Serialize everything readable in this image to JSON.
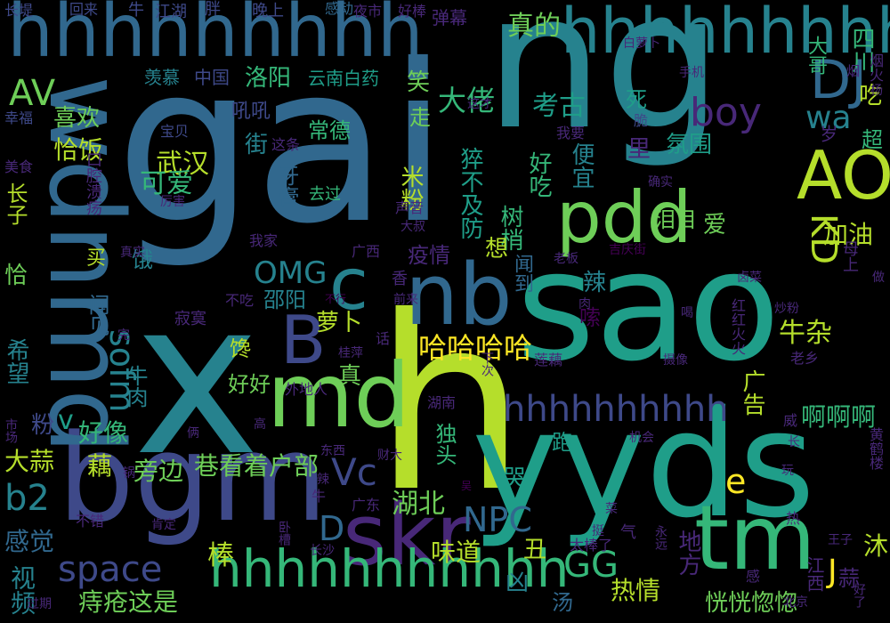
{
  "palette": [
    "#440154",
    "#482878",
    "#3e4989",
    "#31688e",
    "#26828e",
    "#1f9e89",
    "#35b779",
    "#6ece58",
    "#b5de2b",
    "#fde725"
  ],
  "words": [
    {
      "text": "gai",
      "color": "#31688e"
    },
    {
      "text": "ng",
      "color": "#26828e"
    },
    {
      "text": "sao",
      "color": "#1f9e89"
    },
    {
      "text": "x",
      "color": "#26828e"
    },
    {
      "text": "h",
      "color": "#b5de2b"
    },
    {
      "text": "yyds",
      "color": "#1f9e89"
    },
    {
      "text": "bgm",
      "color": "#3e4989"
    },
    {
      "text": "hhhhhhhhh",
      "color": "#31688e"
    },
    {
      "text": "wdnmd",
      "color": "#31688e"
    },
    {
      "text": "md",
      "color": "#6ece58"
    },
    {
      "text": "tm",
      "color": "#35b779"
    },
    {
      "text": "nb",
      "color": "#31688e"
    },
    {
      "text": "pdd",
      "color": "#6ece58"
    },
    {
      "text": "skr",
      "color": "#482878"
    },
    {
      "text": "hhhhhhhhh",
      "color": "#26828e"
    },
    {
      "text": "hhhhhhhhhhh",
      "color": "#35b779"
    },
    {
      "text": "hhhhhhhhhh",
      "color": "#3e4989"
    },
    {
      "text": "c",
      "color": "#26828e"
    },
    {
      "text": "B",
      "color": "#3e4989"
    },
    {
      "text": "AO",
      "color": "#b5de2b"
    },
    {
      "text": "DJ",
      "color": "#31688e"
    },
    {
      "text": "boy",
      "color": "#482878"
    },
    {
      "text": "wa",
      "color": "#26828e"
    },
    {
      "text": "AV",
      "color": "#6ece58"
    },
    {
      "text": "OMG",
      "color": "#26828e"
    },
    {
      "text": "sofm",
      "color": "#26828e"
    },
    {
      "text": "space",
      "color": "#3e4989"
    },
    {
      "text": "NPC",
      "color": "#31688e"
    },
    {
      "text": "GG",
      "color": "#35b779"
    },
    {
      "text": "Vc",
      "color": "#3e4989"
    },
    {
      "text": "D",
      "color": "#31688e"
    },
    {
      "text": "b2",
      "color": "#26828e"
    },
    {
      "text": "e",
      "color": "#fde725"
    },
    {
      "text": "J",
      "color": "#fde725"
    },
    {
      "text": "KD",
      "color": "#b5de2b"
    },
    {
      "text": "v",
      "color": "#1f9e89"
    },
    {
      "text": "哈哈哈哈",
      "color": "#fde725"
    },
    {
      "text": "真的",
      "color": "#6ece58"
    },
    {
      "text": "大佬",
      "color": "#35b779"
    },
    {
      "text": "考古",
      "color": "#1f9e89"
    },
    {
      "text": "武汉",
      "color": "#b5de2b"
    },
    {
      "text": "可爱",
      "color": "#35b779"
    },
    {
      "text": "湖北",
      "color": "#6ece58"
    },
    {
      "text": "棒",
      "color": "#b5de2b"
    },
    {
      "text": "感觉",
      "color": "#31688e"
    },
    {
      "text": "视频",
      "color": "#26828e"
    },
    {
      "text": "痔疮这是",
      "color": "#6ece58"
    },
    {
      "text": "热情",
      "color": "#b5de2b"
    },
    {
      "text": "恍恍惚惚",
      "color": "#6ece58"
    },
    {
      "text": "啊啊啊",
      "color": "#35b779"
    },
    {
      "text": "味道",
      "color": "#b5de2b"
    },
    {
      "text": "巷看着户部",
      "color": "#6ece58"
    },
    {
      "text": "旁边",
      "color": "#6ece58"
    },
    {
      "text": "藕",
      "color": "#b5de2b"
    },
    {
      "text": "大蒜",
      "color": "#b5de2b"
    },
    {
      "text": "好像",
      "color": "#35b779"
    },
    {
      "text": "希望",
      "color": "#26828e"
    },
    {
      "text": "牛杂",
      "color": "#b5de2b"
    },
    {
      "text": "洛阳",
      "color": "#35b779"
    },
    {
      "text": "喜欢",
      "color": "#6ece58"
    },
    {
      "text": "恰饭",
      "color": "#b5de2b"
    },
    {
      "text": "街",
      "color": "#26828e"
    },
    {
      "text": "常德",
      "color": "#35b779"
    },
    {
      "text": "米粉",
      "color": "#b5de2b"
    },
    {
      "text": "猝不及防",
      "color": "#1f9e89"
    },
    {
      "text": "好吃",
      "color": "#35b779"
    },
    {
      "text": "便宜",
      "color": "#26828e"
    },
    {
      "text": "树梢",
      "color": "#35b779"
    },
    {
      "text": "闻到",
      "color": "#31688e"
    },
    {
      "text": "氛围",
      "color": "#1f9e89"
    },
    {
      "text": "加油",
      "color": "#b5de2b"
    },
    {
      "text": "四川",
      "color": "#35b779"
    },
    {
      "text": "大哥",
      "color": "#35b779"
    },
    {
      "text": "吃",
      "color": "#b5de2b"
    },
    {
      "text": "超",
      "color": "#35b779"
    },
    {
      "text": "泪目",
      "color": "#6ece58"
    },
    {
      "text": "爱",
      "color": "#6ece58"
    },
    {
      "text": "独头",
      "color": "#35b779"
    },
    {
      "text": "哭",
      "color": "#1f9e89"
    },
    {
      "text": "丑",
      "color": "#b5de2b"
    },
    {
      "text": "沐",
      "color": "#b5de2b"
    },
    {
      "text": "凶",
      "color": "#26828e"
    },
    {
      "text": "汤",
      "color": "#31688e"
    },
    {
      "text": "跑",
      "color": "#1f9e89"
    },
    {
      "text": "广告",
      "color": "#b5de2b"
    },
    {
      "text": "地方",
      "color": "#482878"
    },
    {
      "text": "真",
      "color": "#6ece58"
    },
    {
      "text": "萝卜",
      "color": "#b5de2b"
    },
    {
      "text": "邵阳",
      "color": "#26828e"
    },
    {
      "text": "馋",
      "color": "#b5de2b"
    },
    {
      "text": "好好",
      "color": "#6ece58"
    },
    {
      "text": "想",
      "color": "#b5de2b"
    },
    {
      "text": "疫情",
      "color": "#482878"
    },
    {
      "text": "辣",
      "color": "#26828e"
    },
    {
      "text": "嗦",
      "color": "#440154"
    },
    {
      "text": "笑",
      "color": "#6ece58"
    },
    {
      "text": "走",
      "color": "#6ece58"
    },
    {
      "text": "死",
      "color": "#1f9e89"
    },
    {
      "text": "里",
      "color": "#482878"
    },
    {
      "text": "牙膏",
      "color": "#31688e"
    },
    {
      "text": "闻见",
      "color": "#31688e"
    },
    {
      "text": "买",
      "color": "#b5de2b"
    },
    {
      "text": "饿",
      "color": "#26828e"
    },
    {
      "text": "恰",
      "color": "#6ece58"
    },
    {
      "text": "长子",
      "color": "#b5de2b"
    },
    {
      "text": "牛肉",
      "color": "#26828e"
    },
    {
      "text": "粉",
      "color": "#3e4989"
    },
    {
      "text": "中国",
      "color": "#3e4989"
    },
    {
      "text": "羡慕",
      "color": "#26828e"
    },
    {
      "text": "云南白药",
      "color": "#1f9e89"
    },
    {
      "text": "吼吼",
      "color": "#3e4989"
    },
    {
      "text": "弹幕",
      "color": "#482878"
    },
    {
      "text": "感动",
      "color": "#31688e"
    },
    {
      "text": "胖",
      "color": "#3e4989"
    },
    {
      "text": "晚上",
      "color": "#3e4989"
    },
    {
      "text": "江湖",
      "color": "#3e4989"
    },
    {
      "text": "牛",
      "color": "#3e4989"
    },
    {
      "text": "回来",
      "color": "#3e4989"
    },
    {
      "text": "长堤",
      "color": "#3e4989"
    },
    {
      "text": "夜市",
      "color": "#482878"
    },
    {
      "text": "好棒",
      "color": "#482878"
    },
    {
      "text": "白萝卜",
      "color": "#482878"
    },
    {
      "text": "烟火",
      "color": "#482878"
    },
    {
      "text": "烟",
      "color": "#482878"
    },
    {
      "text": "杨",
      "color": "#482878"
    },
    {
      "text": "手机",
      "color": "#482878"
    },
    {
      "text": "脆",
      "color": "#3e4989"
    },
    {
      "text": "我要",
      "color": "#482878"
    },
    {
      "text": "确实",
      "color": "#482878"
    },
    {
      "text": "岁",
      "color": "#482878"
    },
    {
      "text": "这才",
      "color": "#482878"
    },
    {
      "text": "幸福",
      "color": "#3e4989"
    },
    {
      "text": "宝贝",
      "color": "#3e4989"
    },
    {
      "text": "这条",
      "color": "#482878"
    },
    {
      "text": "美食",
      "color": "#482878"
    },
    {
      "text": "口腔溃疡",
      "color": "#482878"
    },
    {
      "text": "厉害",
      "color": "#482878"
    },
    {
      "text": "去过",
      "color": "#35b779"
    },
    {
      "text": "声音",
      "color": "#482878"
    },
    {
      "text": "大叔",
      "color": "#482878"
    },
    {
      "text": "我家",
      "color": "#482878"
    },
    {
      "text": "广西",
      "color": "#482878"
    },
    {
      "text": "真实",
      "color": "#482878"
    },
    {
      "text": "老板",
      "color": "#482878"
    },
    {
      "text": "吉庆街",
      "color": "#440154"
    },
    {
      "text": "母上",
      "color": "#482878"
    },
    {
      "text": "做",
      "color": "#482878"
    },
    {
      "text": "香",
      "color": "#482878"
    },
    {
      "text": "卤菜",
      "color": "#482878"
    },
    {
      "text": "不吃",
      "color": "#482878"
    },
    {
      "text": "不行",
      "color": "#440154"
    },
    {
      "text": "前来",
      "color": "#482878"
    },
    {
      "text": "肉",
      "color": "#482878"
    },
    {
      "text": "喝",
      "color": "#482878"
    },
    {
      "text": "炒粉",
      "color": "#482878"
    },
    {
      "text": "红红火火",
      "color": "#482878"
    },
    {
      "text": "寂寞",
      "color": "#482878"
    },
    {
      "text": "话",
      "color": "#482878"
    },
    {
      "text": "桂萍",
      "color": "#482878"
    },
    {
      "text": "完",
      "color": "#482878"
    },
    {
      "text": "莲藕",
      "color": "#482878"
    },
    {
      "text": "摄像",
      "color": "#482878"
    },
    {
      "text": "老乡",
      "color": "#482878"
    },
    {
      "text": "下次",
      "color": "#482878"
    },
    {
      "text": "外地人",
      "color": "#482878"
    },
    {
      "text": "市场",
      "color": "#482878"
    },
    {
      "text": "高",
      "color": "#482878"
    },
    {
      "text": "湖南",
      "color": "#482878"
    },
    {
      "text": "俩",
      "color": "#482878"
    },
    {
      "text": "威",
      "color": "#482878"
    },
    {
      "text": "长",
      "color": "#482878"
    },
    {
      "text": "机会",
      "color": "#482878"
    },
    {
      "text": "黄鹤楼",
      "color": "#482878"
    },
    {
      "text": "东西",
      "color": "#482878"
    },
    {
      "text": "财大",
      "color": "#482878"
    },
    {
      "text": "辣",
      "color": "#482878"
    },
    {
      "text": "锅",
      "color": "#482878"
    },
    {
      "text": "玩",
      "color": "#482878"
    },
    {
      "text": "菜",
      "color": "#482878"
    },
    {
      "text": "吴",
      "color": "#440154"
    },
    {
      "text": "不错",
      "color": "#482878"
    },
    {
      "text": "广东",
      "color": "#482878"
    },
    {
      "text": "肯定",
      "color": "#482878"
    },
    {
      "text": "热",
      "color": "#482878"
    },
    {
      "text": "太棒了",
      "color": "#482878"
    },
    {
      "text": "气",
      "color": "#482878"
    },
    {
      "text": "永远",
      "color": "#482878"
    },
    {
      "text": "王子",
      "color": "#482878"
    },
    {
      "text": "江西",
      "color": "#482878"
    },
    {
      "text": "蒜",
      "color": "#482878"
    },
    {
      "text": "长沙",
      "color": "#482878"
    },
    {
      "text": "挺",
      "color": "#482878"
    },
    {
      "text": "感",
      "color": "#482878"
    },
    {
      "text": "北京",
      "color": "#482878"
    },
    {
      "text": "好了",
      "color": "#482878"
    },
    {
      "text": "过期",
      "color": "#482878"
    },
    {
      "text": "卧槽",
      "color": "#482878"
    },
    {
      "text": "牛",
      "color": "#482878"
    }
  ]
}
